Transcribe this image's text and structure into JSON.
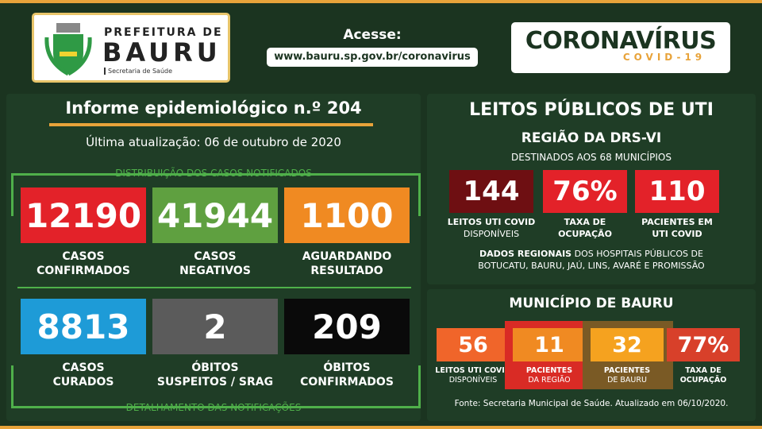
{
  "header": {
    "logo": {
      "line1": "PREFEITURA DE",
      "line2": "BAURU",
      "sub": "Secretaria de Saúde"
    },
    "access_label": "Acesse:",
    "url": "www.bauru.sp.gov.br/coronavirus",
    "brand": {
      "title": "CORONAVÍRUS",
      "sub": "COVID-19"
    }
  },
  "left": {
    "title": "Informe epidemiológico n.º 204",
    "updated": "Última atualização: 06 de outubro de 2020",
    "section1": "DISTRIBUIÇÃO DOS CASOS NOTIFICADOS",
    "section2": "DETALHAMENTO DAS NOTIFICAÇÕES",
    "tiles": [
      {
        "value": "12190",
        "l1": "CASOS",
        "l2": "CONFIRMADOS",
        "color": "#e32229"
      },
      {
        "value": "41944",
        "l1": "CASOS",
        "l2": "NEGATIVOS",
        "color": "#5fa040"
      },
      {
        "value": "1100",
        "l1": "AGUARDANDO",
        "l2": "RESULTADO",
        "color": "#f08a22"
      },
      {
        "value": "8813",
        "l1": "CASOS",
        "l2": "CURADOS",
        "color": "#1e9bd7"
      },
      {
        "value": "2",
        "l1": "ÓBITOS",
        "l2": "SUSPEITOS / SRAG",
        "color": "#5b5b5b"
      },
      {
        "value": "209",
        "l1": "ÓBITOS",
        "l2": "CONFIRMADOS",
        "color": "#0a0a0a"
      }
    ]
  },
  "right": {
    "title": "LEITOS PÚBLICOS DE UTI",
    "region": "REGIÃO DA DRS-VI",
    "dest": "DESTINADOS AOS 68 MUNICÍPIOS",
    "regional": [
      {
        "value": "144",
        "l1": "LEITOS UTI COVID",
        "l2": "DISPONÍVEIS",
        "color": "#6e0f12"
      },
      {
        "value": "76%",
        "l1": "TAXA DE",
        "l2": "OCUPAÇÃO",
        "color": "#e32229"
      },
      {
        "value": "110",
        "l1": "PACIENTES EM",
        "l2": "UTI COVID",
        "color": "#e32229"
      }
    ],
    "note_bold": "DADOS REGIONAIS",
    "note_rest": " DOS HOSPITAIS PÚBLICOS DE",
    "note_line2": "BOTUCATU, BAURU, JAÚ, LINS, AVARÉ E PROMISSÃO",
    "muni_title": "MUNICÍPIO DE BAURU",
    "muni": [
      {
        "value": "56",
        "l1": "LEITOS UTI COVID",
        "l2": "DISPONÍVEIS",
        "color": "#f0652a",
        "frame": ""
      },
      {
        "value": "11",
        "l1": "PACIENTES",
        "l2": "DA REGIÃO",
        "color": "#f08a22",
        "frame": "#d92b25"
      },
      {
        "value": "32",
        "l1": "PACIENTES",
        "l2": "DE BAURU",
        "color": "#f5a21f",
        "frame": "#7a5a25"
      },
      {
        "value": "77%",
        "l1": "TAXA DE",
        "l2": "OCUPAÇÃO",
        "color": "#d8402a",
        "frame": ""
      }
    ],
    "source": "Fonte: Secretaria Municipal de Saúde. Atualizado em 06/10/2020."
  }
}
